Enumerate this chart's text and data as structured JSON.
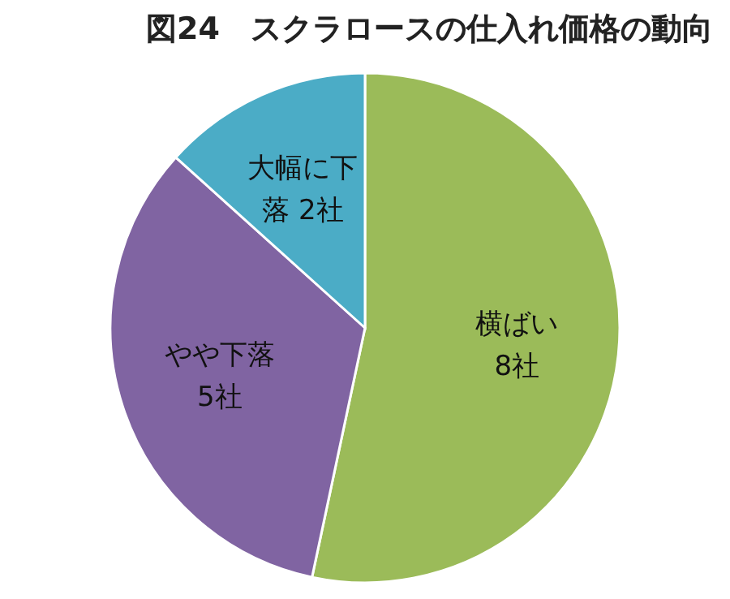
{
  "chart_data": {
    "type": "pie",
    "title": "図24　スクラロースの仕入れ価格の動向",
    "categories": [
      "横ばい",
      "やや下落",
      "大幅に下落"
    ],
    "values": [
      8,
      5,
      2
    ],
    "value_labels": [
      "8社",
      "5社",
      "2社"
    ],
    "colors": [
      "#9bbb59",
      "#8064a2",
      "#4bacc6"
    ]
  }
}
